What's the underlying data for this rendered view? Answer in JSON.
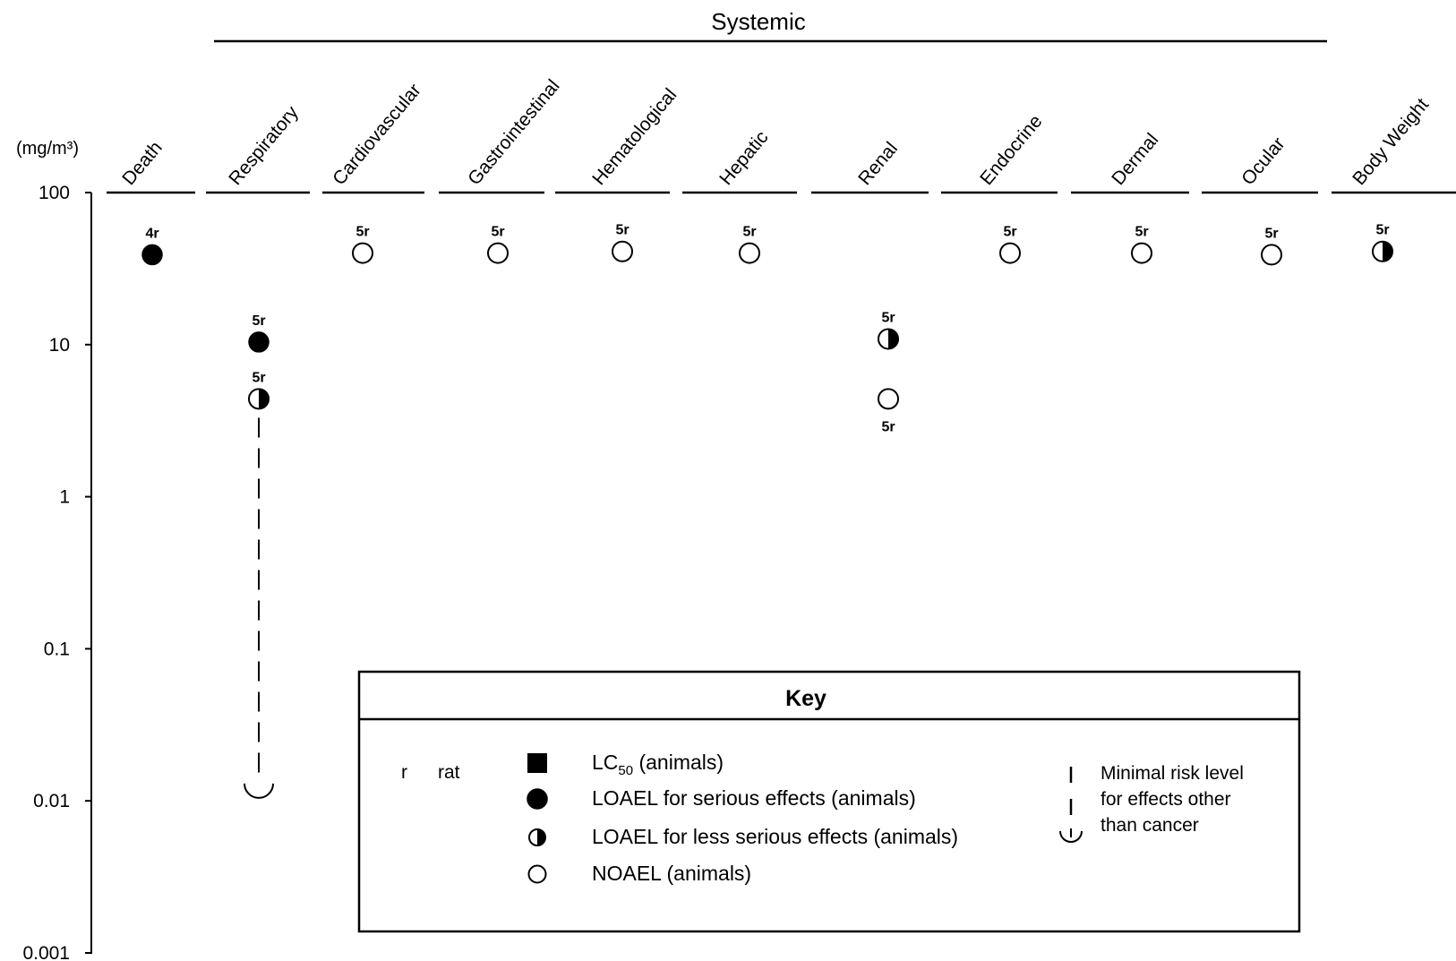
{
  "chart_data": {
    "type": "scatter",
    "group_label": "Systemic",
    "y_unit": "(mg/m³)",
    "y_scale": "log",
    "ylim": [
      0.001,
      100
    ],
    "y_ticks": [
      "100",
      "10",
      "1",
      "0.1",
      "0.01",
      "0.001"
    ],
    "categories": [
      "Death",
      "Respiratory",
      "Cardiovascular",
      "Gastrointestinal",
      "Hematological",
      "Hepatic",
      "Renal",
      "Endocrine",
      "Dermal",
      "Ocular",
      "Body Weight"
    ],
    "points": [
      {
        "category": "Death",
        "value": 39,
        "symbol": "filled-circle",
        "label": "4r",
        "label_pos": "above"
      },
      {
        "category": "Respiratory",
        "value": 10.4,
        "symbol": "filled-circle",
        "label": "5r",
        "label_pos": "above"
      },
      {
        "category": "Respiratory",
        "value": 4.4,
        "symbol": "half-circle",
        "label": "5r",
        "label_pos": "above"
      },
      {
        "category": "Cardiovascular",
        "value": 40,
        "symbol": "open-circle",
        "label": "5r",
        "label_pos": "above"
      },
      {
        "category": "Gastrointestinal",
        "value": 40,
        "symbol": "open-circle",
        "label": "5r",
        "label_pos": "above"
      },
      {
        "category": "Hematological",
        "value": 41,
        "symbol": "open-circle",
        "label": "5r",
        "label_pos": "above"
      },
      {
        "category": "Hepatic",
        "value": 40,
        "symbol": "open-circle",
        "label": "5r",
        "label_pos": "above"
      },
      {
        "category": "Renal",
        "value": 10.9,
        "symbol": "half-circle",
        "label": "5r",
        "label_pos": "above"
      },
      {
        "category": "Renal",
        "value": 4.4,
        "symbol": "open-circle",
        "label": "5r",
        "label_pos": "below"
      },
      {
        "category": "Endocrine",
        "value": 40,
        "symbol": "open-circle",
        "label": "5r",
        "label_pos": "above"
      },
      {
        "category": "Dermal",
        "value": 40,
        "symbol": "open-circle",
        "label": "5r",
        "label_pos": "above"
      },
      {
        "category": "Ocular",
        "value": 39,
        "symbol": "open-circle",
        "label": "5r",
        "label_pos": "above"
      },
      {
        "category": "Body Weight",
        "value": 41,
        "symbol": "half-circle",
        "label": "5r",
        "label_pos": "above"
      }
    ],
    "mrl": {
      "category": "Respiratory",
      "value": 0.013,
      "from_value": 3.3,
      "symbol": "mrl"
    },
    "key": {
      "title": "Key",
      "species": [
        {
          "abbr": "r",
          "name": "rat"
        }
      ],
      "items": [
        {
          "symbol": "filled-square",
          "text": "LC",
          "sub": "50",
          "text_after": " (animals)"
        },
        {
          "symbol": "filled-circle",
          "text": "LOAEL for serious effects (animals)",
          "sub": "",
          "text_after": ""
        },
        {
          "symbol": "half-circle",
          "text": "LOAEL for less serious effects (animals)",
          "sub": "",
          "text_after": ""
        },
        {
          "symbol": "open-circle",
          "text": "NOAEL (animals)",
          "sub": "",
          "text_after": ""
        }
      ],
      "mrl_lines": [
        "Minimal risk level",
        "for effects other",
        "than cancer"
      ]
    }
  }
}
